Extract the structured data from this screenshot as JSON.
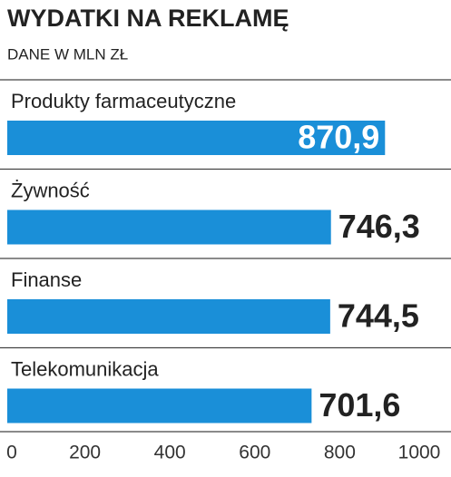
{
  "chart_data": {
    "type": "bar",
    "orientation": "horizontal",
    "title": "WYDATKI NA REKLAMĘ",
    "subtitle": "DANE W MLN  ZŁ",
    "categories": [
      "Produkty farmaceutyczne",
      "Żywność",
      "Finanse",
      "Telekomunikacja"
    ],
    "values": [
      870.9,
      746.3,
      744.5,
      701.6
    ],
    "value_labels": [
      "870,9",
      "746,3",
      "744,5",
      "701,6"
    ],
    "color": "#1a8fd8",
    "xlim": [
      0,
      1000
    ],
    "xticks": [
      0,
      200,
      400,
      600,
      800,
      1000
    ]
  }
}
